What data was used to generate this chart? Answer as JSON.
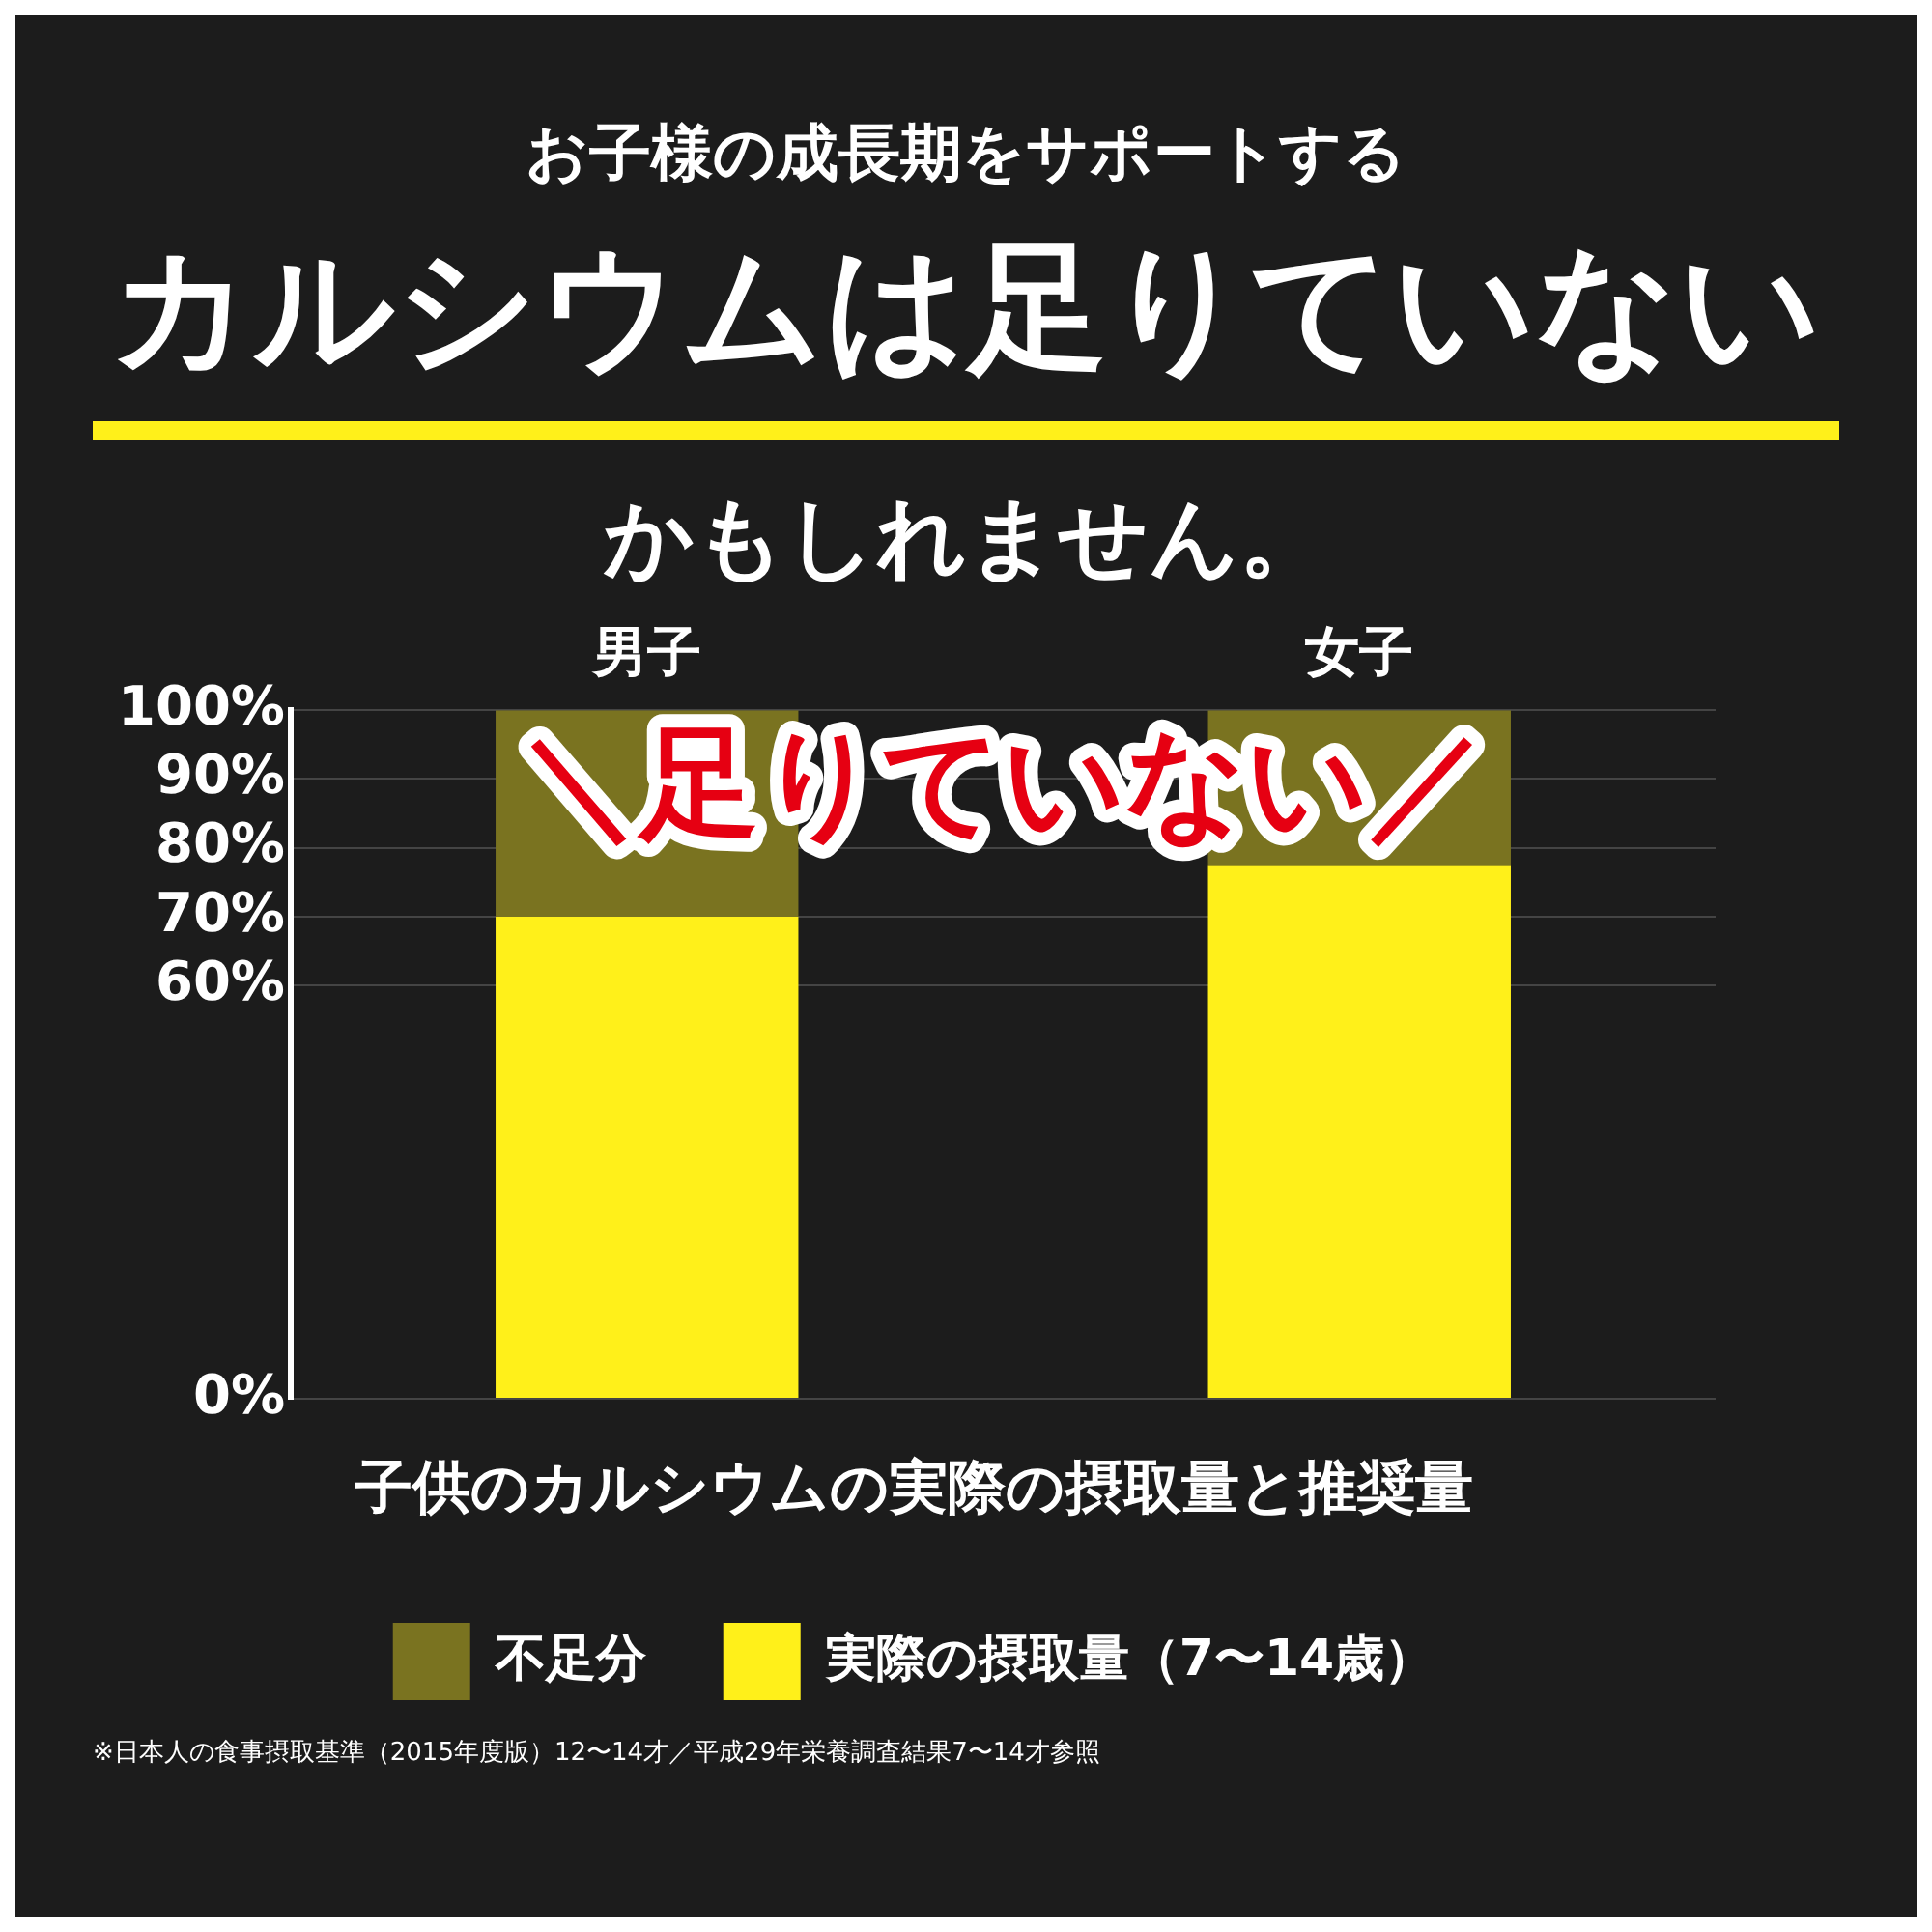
{
  "chart_data": {
    "type": "bar",
    "stacked": true,
    "title": "カルシウムは足りていない",
    "annotations": [
      "お子様の成長期をサポートする",
      "かもしれません。",
      "＼足りていない／",
      "※日本人の食事摂取基準（2015年度版）12〜14才／平成29年栄養調査結果7〜14才参照"
    ],
    "xlabel": "子供のカルシウムの実際の摂取量と推奨量",
    "categories": [
      "男子",
      "女子"
    ],
    "series": [
      {
        "name": "実際の摂取量（7〜14歳）",
        "color": "#fff01a",
        "values": [
          70,
          77.5
        ]
      },
      {
        "name": "不足分",
        "color": "#7a7320",
        "values": [
          30,
          22.5
        ]
      }
    ],
    "ylim": [
      0,
      100
    ],
    "yticks": [
      {
        "value": 0,
        "label": "0%"
      },
      {
        "value": 60,
        "label": "60%"
      },
      {
        "value": 70,
        "label": "70%"
      },
      {
        "value": 80,
        "label": "80%"
      },
      {
        "value": 90,
        "label": "90%"
      },
      {
        "value": 100,
        "label": "100%"
      }
    ],
    "grid": "y",
    "legend": "bottom"
  }
}
